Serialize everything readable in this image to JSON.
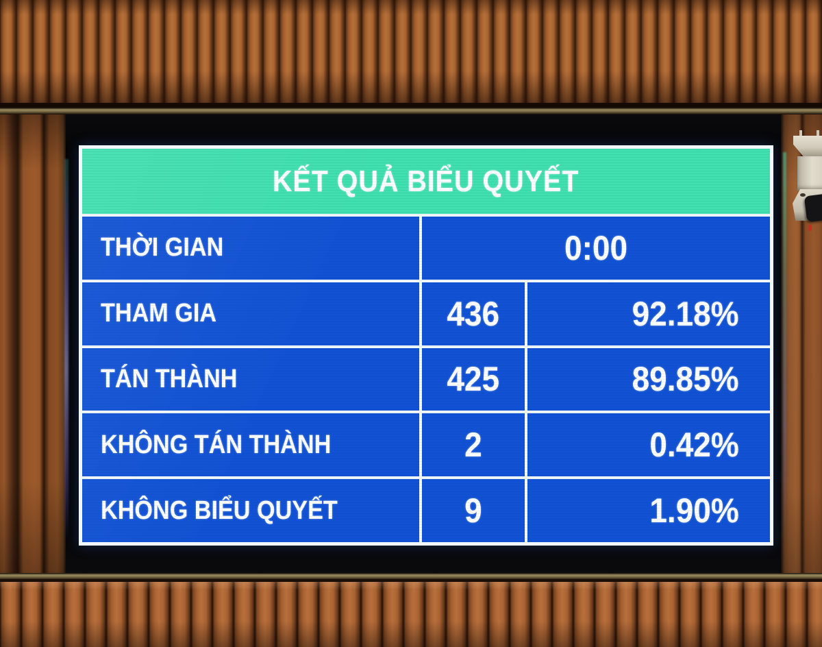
{
  "board": {
    "title": "KẾT QUẢ BIỂU QUYẾT",
    "time_row": {
      "label": "THỜI GIAN",
      "value": "0:00"
    },
    "result_rows": [
      {
        "label": "THAM GIA",
        "count": "436",
        "percent": "92.18%"
      },
      {
        "label": "TÁN THÀNH",
        "count": "425",
        "percent": "89.85%"
      },
      {
        "label": "KHÔNG TÁN THÀNH",
        "count": "2",
        "percent": "0.42%"
      },
      {
        "label": "KHÔNG BIỂU QUYẾT",
        "count": "9",
        "percent": "1.90%"
      }
    ],
    "colors": {
      "header_bg": "#40dfae",
      "cell_bg": "#1152d4",
      "grid_lines": "#f2f7f9",
      "text": "#ffffff"
    }
  }
}
